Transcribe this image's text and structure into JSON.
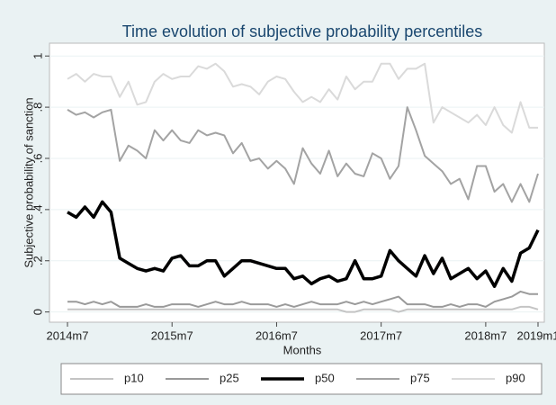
{
  "chart_data": {
    "type": "line",
    "title": "Time evolution of subjective probability percentiles",
    "x_label": "Months",
    "y_label": "Subjective probability of sanction",
    "categories": [
      "2014m7",
      null,
      null,
      null,
      null,
      null,
      null,
      null,
      null,
      null,
      null,
      null,
      "2015m7",
      null,
      null,
      null,
      null,
      null,
      null,
      null,
      null,
      null,
      null,
      null,
      "2016m7",
      null,
      null,
      null,
      null,
      null,
      null,
      null,
      null,
      null,
      null,
      null,
      "2017m7",
      null,
      null,
      null,
      null,
      null,
      null,
      null,
      null,
      null,
      null,
      null,
      "2018m7",
      null,
      null,
      null,
      null,
      null,
      "2019m1"
    ],
    "ylim": [
      -0.04,
      1.05
    ],
    "yticks": [
      0,
      {
        "value": 0.2,
        "label": ".2"
      },
      {
        "value": 0.4,
        "label": ".4"
      },
      {
        "value": 0.6,
        "label": ".6"
      },
      {
        "value": 0.8,
        "label": ".8"
      },
      1
    ],
    "grid": true,
    "series": [
      {
        "name": "p10",
        "color": "#c4c4c4",
        "width": 2,
        "values": [
          0.01,
          0.01,
          0.01,
          0.01,
          0.01,
          0.01,
          0.01,
          0.01,
          0.01,
          0.01,
          0.01,
          0.01,
          0.01,
          0.01,
          0.01,
          0.01,
          0.01,
          0.01,
          0.01,
          0.01,
          0.01,
          0.01,
          0.01,
          0.01,
          0.01,
          0.01,
          0.01,
          0.01,
          0.01,
          0.01,
          0.01,
          0.01,
          0.0,
          0.0,
          0.01,
          0.01,
          0.01,
          0.01,
          0.0,
          0.01,
          0.01,
          0.01,
          0.01,
          0.01,
          0.01,
          0.01,
          0.01,
          0.01,
          0.01,
          0.01,
          0.01,
          0.01,
          0.02,
          0.02,
          0.01
        ]
      },
      {
        "name": "p25",
        "color": "#9a9a9a",
        "width": 2,
        "values": [
          0.04,
          0.04,
          0.03,
          0.04,
          0.03,
          0.04,
          0.02,
          0.02,
          0.02,
          0.03,
          0.02,
          0.02,
          0.03,
          0.03,
          0.03,
          0.02,
          0.03,
          0.04,
          0.03,
          0.03,
          0.04,
          0.03,
          0.03,
          0.03,
          0.02,
          0.03,
          0.02,
          0.03,
          0.04,
          0.03,
          0.03,
          0.03,
          0.04,
          0.03,
          0.04,
          0.03,
          0.04,
          0.05,
          0.06,
          0.03,
          0.03,
          0.03,
          0.02,
          0.02,
          0.03,
          0.02,
          0.03,
          0.03,
          0.02,
          0.04,
          0.05,
          0.06,
          0.08,
          0.07,
          0.07
        ]
      },
      {
        "name": "p50",
        "color": "#000000",
        "width": 3.5,
        "values": [
          0.39,
          0.37,
          0.41,
          0.37,
          0.43,
          0.39,
          0.21,
          0.19,
          0.17,
          0.16,
          0.17,
          0.16,
          0.21,
          0.22,
          0.18,
          0.18,
          0.2,
          0.2,
          0.14,
          0.17,
          0.2,
          0.2,
          0.19,
          0.18,
          0.17,
          0.17,
          0.13,
          0.14,
          0.11,
          0.13,
          0.14,
          0.12,
          0.13,
          0.2,
          0.13,
          0.13,
          0.14,
          0.24,
          0.2,
          0.17,
          0.14,
          0.22,
          0.15,
          0.21,
          0.13,
          0.15,
          0.17,
          0.13,
          0.16,
          0.1,
          0.17,
          0.12,
          0.23,
          0.25,
          0.32
        ]
      },
      {
        "name": "p75",
        "color": "#a3a3a3",
        "width": 2,
        "values": [
          0.79,
          0.77,
          0.78,
          0.76,
          0.78,
          0.79,
          0.59,
          0.65,
          0.63,
          0.6,
          0.71,
          0.67,
          0.71,
          0.67,
          0.66,
          0.71,
          0.69,
          0.7,
          0.69,
          0.62,
          0.66,
          0.59,
          0.6,
          0.56,
          0.59,
          0.56,
          0.5,
          0.64,
          0.58,
          0.54,
          0.63,
          0.53,
          0.58,
          0.54,
          0.53,
          0.62,
          0.6,
          0.52,
          0.57,
          0.8,
          0.71,
          0.61,
          0.58,
          0.55,
          0.5,
          0.52,
          0.44,
          0.57,
          0.57,
          0.47,
          0.5,
          0.43,
          0.5,
          0.43,
          0.54
        ]
      },
      {
        "name": "p90",
        "color": "#dadada",
        "width": 2,
        "values": [
          0.91,
          0.93,
          0.9,
          0.93,
          0.92,
          0.92,
          0.84,
          0.9,
          0.81,
          0.82,
          0.9,
          0.93,
          0.91,
          0.92,
          0.92,
          0.96,
          0.95,
          0.97,
          0.94,
          0.88,
          0.89,
          0.88,
          0.85,
          0.9,
          0.92,
          0.91,
          0.86,
          0.82,
          0.84,
          0.82,
          0.87,
          0.83,
          0.92,
          0.87,
          0.9,
          0.9,
          0.97,
          0.97,
          0.91,
          0.95,
          0.95,
          0.97,
          0.74,
          0.8,
          0.78,
          0.76,
          0.74,
          0.77,
          0.73,
          0.8,
          0.73,
          0.7,
          0.82,
          0.72,
          0.72
        ]
      }
    ]
  }
}
